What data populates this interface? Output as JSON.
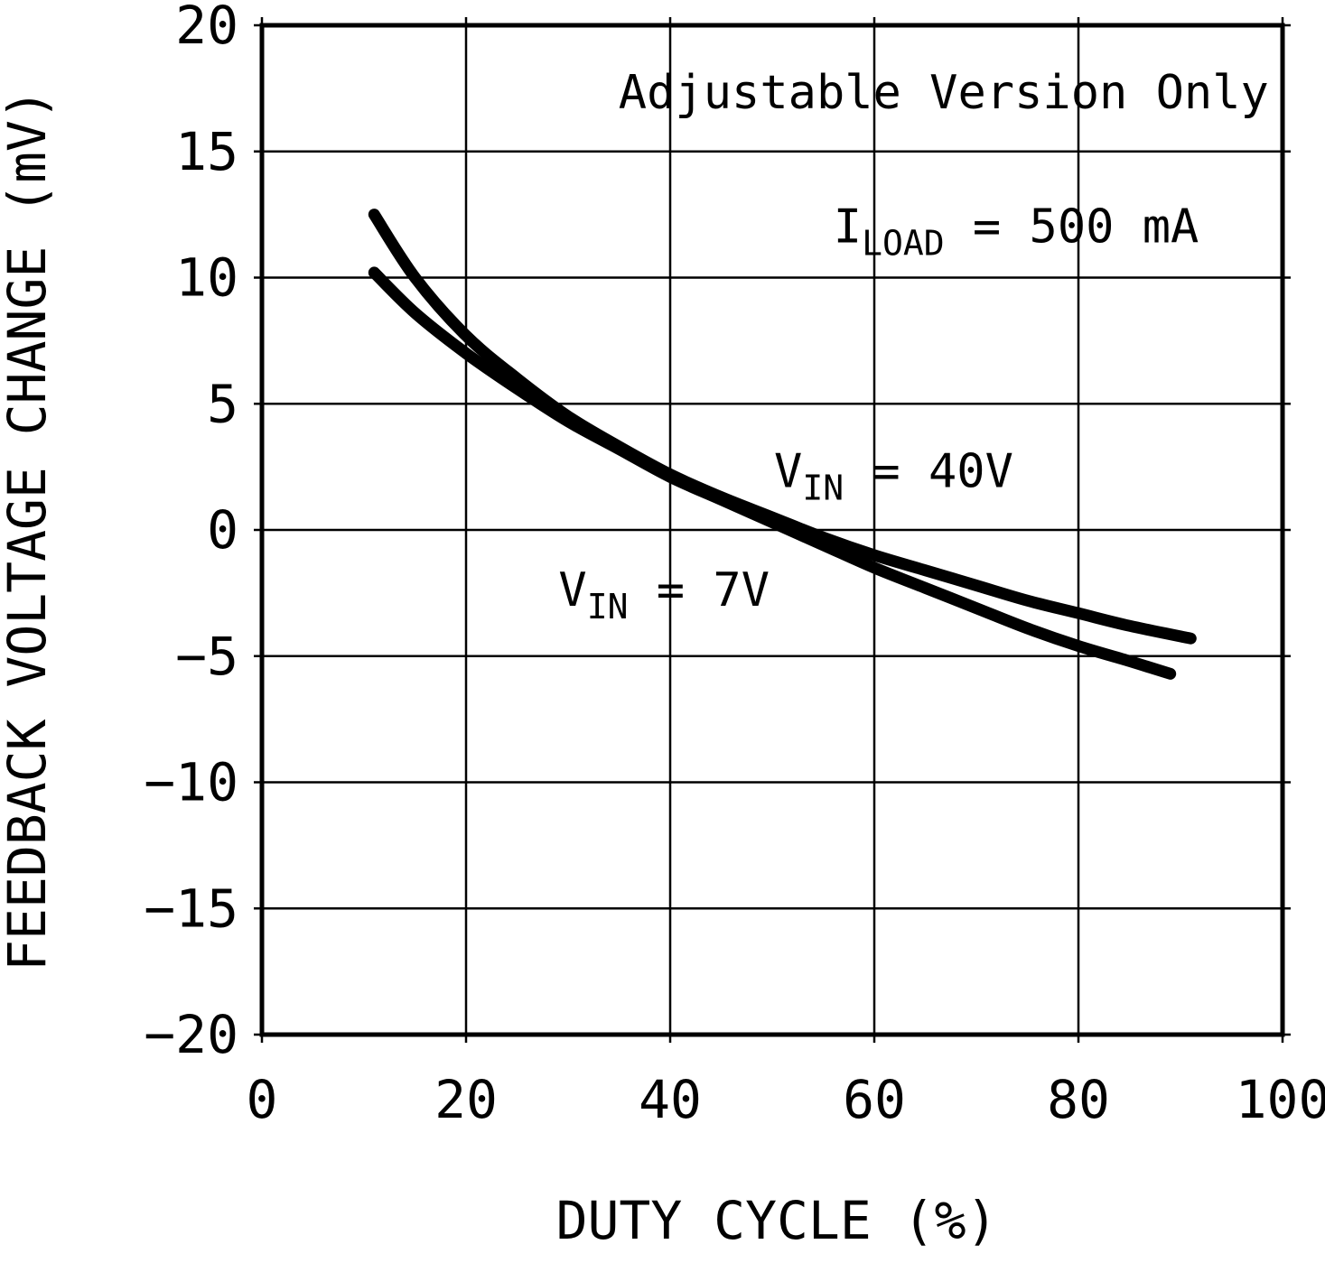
{
  "chart_data": {
    "type": "line",
    "title": "",
    "xlabel": "DUTY CYCLE (%)",
    "ylabel": "FEEDBACK VOLTAGE CHANGE (mV)",
    "xlim": [
      0,
      100
    ],
    "ylim": [
      -20,
      20
    ],
    "xticks": [
      0,
      20,
      40,
      60,
      80,
      100
    ],
    "yticks": [
      -20,
      -15,
      -10,
      -5,
      0,
      5,
      10,
      15,
      20
    ],
    "grid": true,
    "legend_position": "none",
    "line_color": "#000000",
    "series": [
      {
        "name": "VIN = 40V",
        "x": [
          11,
          15,
          20,
          25,
          30,
          35,
          40,
          45,
          50,
          55,
          60,
          65,
          70,
          75,
          80,
          85,
          91
        ],
        "y": [
          12.5,
          10.0,
          7.7,
          6.0,
          4.5,
          3.3,
          2.2,
          1.3,
          0.5,
          -0.3,
          -1.0,
          -1.6,
          -2.2,
          -2.8,
          -3.3,
          -3.8,
          -4.3
        ]
      },
      {
        "name": "VIN = 7V",
        "x": [
          11,
          15,
          20,
          25,
          30,
          35,
          40,
          45,
          50,
          55,
          60,
          65,
          70,
          75,
          80,
          85,
          89
        ],
        "y": [
          10.2,
          8.6,
          7.0,
          5.6,
          4.3,
          3.2,
          2.1,
          1.2,
          0.3,
          -0.6,
          -1.5,
          -2.3,
          -3.1,
          -3.9,
          -4.6,
          -5.2,
          -5.7
        ]
      }
    ],
    "annotations": [
      {
        "id": "adjustable-version-note",
        "x": 66.8,
        "y": 16.7,
        "parts": [
          {
            "t": "Adjustable Version Only"
          }
        ]
      },
      {
        "id": "load-current-note",
        "x": 73.9,
        "y": 11.4,
        "parts": [
          {
            "t": "I"
          },
          {
            "t": "LOAD",
            "sub": true
          },
          {
            "t": " = 500 mA"
          }
        ]
      },
      {
        "id": "vin-40v-label",
        "x": 61.9,
        "y": 1.7,
        "parts": [
          {
            "t": "V"
          },
          {
            "t": "IN",
            "sub": true
          },
          {
            "t": " = 40V"
          }
        ]
      },
      {
        "id": "vin-7v-label",
        "x": 39.4,
        "y": -3.0,
        "parts": [
          {
            "t": "V"
          },
          {
            "t": "IN",
            "sub": true
          },
          {
            "t": " = 7V"
          }
        ]
      }
    ]
  }
}
